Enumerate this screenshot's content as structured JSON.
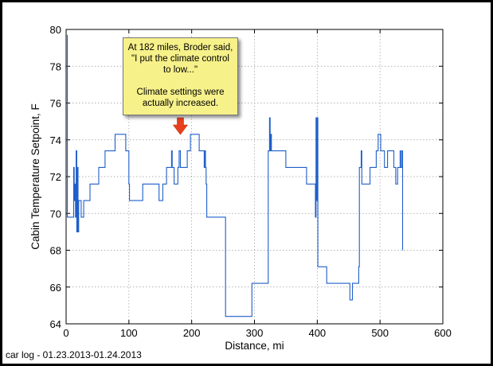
{
  "chart_data": {
    "type": "line",
    "xlabel": "Distance, mi",
    "ylabel": "Cabin Temperature Setpoint, F",
    "xlim": [
      0,
      600
    ],
    "ylim": [
      64,
      80
    ],
    "xticks": [
      0,
      100,
      200,
      300,
      400,
      500,
      600
    ],
    "yticks": [
      64,
      66,
      68,
      70,
      72,
      74,
      76,
      78,
      80
    ],
    "grid": true,
    "line_color": "#1f5fc9",
    "series": [
      {
        "points": [
          [
            2,
            69.8
          ],
          [
            2,
            79.7
          ],
          [
            2,
            69.8
          ],
          [
            12,
            69.8
          ],
          [
            12,
            72.5
          ],
          [
            13,
            72.5
          ],
          [
            13,
            70.7
          ],
          [
            14,
            70.7
          ],
          [
            14,
            71.6
          ],
          [
            15,
            71.6
          ],
          [
            15,
            69.8
          ],
          [
            16,
            69.8
          ],
          [
            16,
            73.4
          ],
          [
            17,
            73.4
          ],
          [
            17,
            69.0
          ],
          [
            18,
            69.0
          ],
          [
            18,
            72.5
          ],
          [
            19,
            72.5
          ],
          [
            19,
            69.0
          ],
          [
            20,
            69.0
          ],
          [
            20,
            70.7
          ],
          [
            24,
            70.7
          ],
          [
            24,
            69.8
          ],
          [
            28,
            69.8
          ],
          [
            28,
            70.7
          ],
          [
            38,
            70.7
          ],
          [
            38,
            71.6
          ],
          [
            52,
            71.6
          ],
          [
            52,
            72.5
          ],
          [
            62,
            72.5
          ],
          [
            62,
            73.4
          ],
          [
            78,
            73.4
          ],
          [
            78,
            74.3
          ],
          [
            95,
            74.3
          ],
          [
            95,
            73.4
          ],
          [
            100,
            73.4
          ],
          [
            100,
            71.6
          ],
          [
            101,
            71.6
          ],
          [
            101,
            70.7
          ],
          [
            122,
            70.7
          ],
          [
            122,
            71.6
          ],
          [
            148,
            71.6
          ],
          [
            148,
            70.7
          ],
          [
            154,
            70.7
          ],
          [
            154,
            71.6
          ],
          [
            160,
            71.6
          ],
          [
            160,
            72.5
          ],
          [
            168,
            72.5
          ],
          [
            168,
            73.4
          ],
          [
            169,
            73.4
          ],
          [
            169,
            72.5
          ],
          [
            172,
            72.5
          ],
          [
            172,
            71.6
          ],
          [
            178,
            71.6
          ],
          [
            178,
            72.5
          ],
          [
            180,
            72.5
          ],
          [
            180,
            73.4
          ],
          [
            182,
            73.4
          ],
          [
            182,
            72.5
          ],
          [
            193,
            72.5
          ],
          [
            193,
            73.4
          ],
          [
            198,
            73.4
          ],
          [
            198,
            74.3
          ],
          [
            212,
            74.3
          ],
          [
            212,
            73.4
          ],
          [
            220,
            73.4
          ],
          [
            220,
            72.5
          ],
          [
            221,
            72.5
          ],
          [
            221,
            73.4
          ],
          [
            222,
            73.4
          ],
          [
            222,
            72.5
          ],
          [
            223,
            72.5
          ],
          [
            223,
            71.6
          ],
          [
            224,
            71.6
          ],
          [
            224,
            69.8
          ],
          [
            228,
            69.8
          ],
          [
            228,
            69.8
          ],
          [
            254,
            69.8
          ],
          [
            254,
            64.4
          ],
          [
            296,
            64.4
          ],
          [
            296,
            66.2
          ],
          [
            322,
            66.2
          ],
          [
            322,
            73.4
          ],
          [
            324,
            73.4
          ],
          [
            324,
            75.2
          ],
          [
            325,
            75.2
          ],
          [
            325,
            73.4
          ],
          [
            326,
            73.4
          ],
          [
            326,
            74.3
          ],
          [
            327,
            74.3
          ],
          [
            327,
            73.4
          ],
          [
            350,
            73.4
          ],
          [
            350,
            72.5
          ],
          [
            383,
            72.5
          ],
          [
            383,
            71.6
          ],
          [
            397,
            71.6
          ],
          [
            397,
            69.8
          ],
          [
            398,
            69.8
          ],
          [
            398,
            75.2
          ],
          [
            399,
            75.2
          ],
          [
            399,
            70.7
          ],
          [
            400,
            70.7
          ],
          [
            400,
            75.2
          ],
          [
            401,
            75.2
          ],
          [
            401,
            67.1
          ],
          [
            415,
            67.1
          ],
          [
            415,
            66.2
          ],
          [
            452,
            66.2
          ],
          [
            452,
            65.3
          ],
          [
            456,
            65.3
          ],
          [
            456,
            66.2
          ],
          [
            466,
            66.2
          ],
          [
            466,
            67.1
          ],
          [
            467,
            67.1
          ],
          [
            467,
            72.5
          ],
          [
            470,
            72.5
          ],
          [
            470,
            73.4
          ],
          [
            471,
            73.4
          ],
          [
            471,
            71.6
          ],
          [
            484,
            71.6
          ],
          [
            484,
            72.5
          ],
          [
            494,
            72.5
          ],
          [
            494,
            73.4
          ],
          [
            497,
            73.4
          ],
          [
            497,
            74.3
          ],
          [
            501,
            74.3
          ],
          [
            501,
            73.4
          ],
          [
            507,
            73.4
          ],
          [
            507,
            72.5
          ],
          [
            512,
            72.5
          ],
          [
            512,
            73.4
          ],
          [
            522,
            73.4
          ],
          [
            522,
            72.5
          ],
          [
            525,
            72.5
          ],
          [
            525,
            71.6
          ],
          [
            528,
            71.6
          ],
          [
            528,
            72.5
          ],
          [
            532,
            72.5
          ],
          [
            532,
            73.4
          ],
          [
            533,
            73.4
          ],
          [
            533,
            72.5
          ],
          [
            535,
            72.5
          ],
          [
            535,
            73.4
          ],
          [
            536,
            73.4
          ],
          [
            536,
            68.0
          ]
        ]
      }
    ],
    "annotation": {
      "lines": [
        "At 182 miles, Broder said, \"I put the climate control to low...\"",
        "Climate settings were actually increased."
      ],
      "arrow_x": 182,
      "arrow_color": "#e8401c",
      "box_color": "#f7f18a"
    }
  },
  "footer_text": "car log - 01.23.2013-01.24.2013"
}
